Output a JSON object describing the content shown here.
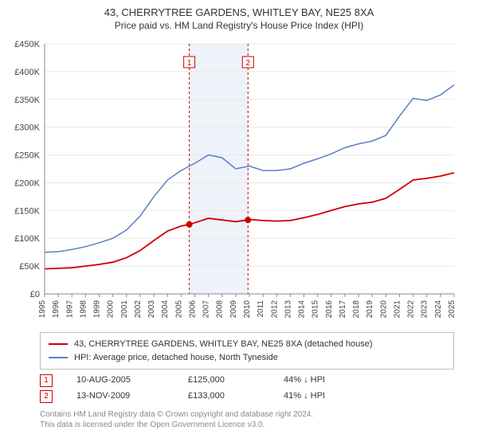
{
  "title": "43, CHERRYTREE GARDENS, WHITLEY BAY, NE25 8XA",
  "subtitle": "Price paid vs. HM Land Registry's House Price Index (HPI)",
  "chart": {
    "type": "line",
    "background_color": "#ffffff",
    "grid_color": "#e8e8e8",
    "border_color": "#888888",
    "y": {
      "label_prefix": "£",
      "label_suffix": "K",
      "min": 0,
      "max": 450,
      "step": 50,
      "ticks": [
        0,
        50,
        100,
        150,
        200,
        250,
        300,
        350,
        400,
        450
      ],
      "tick_fontsize": 11
    },
    "x": {
      "min": 1995,
      "max": 2025,
      "ticks": [
        1995,
        1996,
        1997,
        1998,
        1999,
        2000,
        2001,
        2002,
        2003,
        2004,
        2005,
        2006,
        2007,
        2008,
        2009,
        2010,
        2011,
        2012,
        2013,
        2014,
        2015,
        2016,
        2017,
        2018,
        2019,
        2020,
        2021,
        2022,
        2023,
        2024,
        2025
      ],
      "tick_fontsize": 10,
      "tick_rotation": -90
    },
    "shaded_band": {
      "x_from": 2005.6,
      "x_to": 2009.9,
      "fill": "#eef2f9"
    },
    "vertical_markers": [
      {
        "num": "1",
        "x": 2005.6,
        "color": "#cc0000",
        "dash": "3,3"
      },
      {
        "num": "2",
        "x": 2009.9,
        "color": "#cc0000",
        "dash": "3,3"
      }
    ],
    "series": [
      {
        "name": "property",
        "color": "#cc0000",
        "width": 1.8,
        "points": [
          [
            1995,
            45
          ],
          [
            1996,
            46
          ],
          [
            1997,
            47
          ],
          [
            1998,
            50
          ],
          [
            1999,
            53
          ],
          [
            2000,
            57
          ],
          [
            2001,
            65
          ],
          [
            2002,
            78
          ],
          [
            2003,
            96
          ],
          [
            2004,
            113
          ],
          [
            2005,
            122
          ],
          [
            2005.6,
            125
          ],
          [
            2006,
            128
          ],
          [
            2007,
            136
          ],
          [
            2008,
            133
          ],
          [
            2009,
            130
          ],
          [
            2009.9,
            133
          ],
          [
            2010,
            134
          ],
          [
            2011,
            132
          ],
          [
            2012,
            131
          ],
          [
            2013,
            132
          ],
          [
            2014,
            137
          ],
          [
            2015,
            143
          ],
          [
            2016,
            150
          ],
          [
            2017,
            157
          ],
          [
            2018,
            162
          ],
          [
            2019,
            165
          ],
          [
            2020,
            172
          ],
          [
            2021,
            188
          ],
          [
            2022,
            205
          ],
          [
            2023,
            208
          ],
          [
            2024,
            212
          ],
          [
            2025,
            218
          ]
        ],
        "dots": [
          {
            "x": 2005.6,
            "y": 125,
            "color": "#cc0000"
          },
          {
            "x": 2009.9,
            "y": 133,
            "color": "#cc0000"
          }
        ]
      },
      {
        "name": "hpi",
        "color": "#5a7fc4",
        "width": 1.5,
        "points": [
          [
            1995,
            75
          ],
          [
            1996,
            76
          ],
          [
            1997,
            80
          ],
          [
            1998,
            85
          ],
          [
            1999,
            92
          ],
          [
            2000,
            100
          ],
          [
            2001,
            115
          ],
          [
            2002,
            140
          ],
          [
            2003,
            175
          ],
          [
            2004,
            205
          ],
          [
            2005,
            222
          ],
          [
            2006,
            235
          ],
          [
            2007,
            250
          ],
          [
            2008,
            245
          ],
          [
            2009,
            225
          ],
          [
            2010,
            230
          ],
          [
            2011,
            222
          ],
          [
            2012,
            222
          ],
          [
            2013,
            225
          ],
          [
            2014,
            235
          ],
          [
            2015,
            243
          ],
          [
            2016,
            252
          ],
          [
            2017,
            263
          ],
          [
            2018,
            270
          ],
          [
            2019,
            275
          ],
          [
            2020,
            285
          ],
          [
            2021,
            320
          ],
          [
            2022,
            352
          ],
          [
            2023,
            348
          ],
          [
            2024,
            358
          ],
          [
            2025,
            376
          ]
        ]
      }
    ]
  },
  "legend": {
    "items": [
      {
        "color": "#cc0000",
        "label": "43, CHERRYTREE GARDENS, WHITLEY BAY, NE25 8XA (detached house)"
      },
      {
        "color": "#5a7fc4",
        "label": "HPI: Average price, detached house, North Tyneside"
      }
    ]
  },
  "marker_rows": [
    {
      "num": "1",
      "date": "10-AUG-2005",
      "price": "£125,000",
      "delta": "44% ↓ HPI"
    },
    {
      "num": "2",
      "date": "13-NOV-2009",
      "price": "£133,000",
      "delta": "41% ↓ HPI"
    }
  ],
  "footer_line1": "Contains HM Land Registry data © Crown copyright and database right 2024.",
  "footer_line2": "This data is licensed under the Open Government Licence v3.0."
}
